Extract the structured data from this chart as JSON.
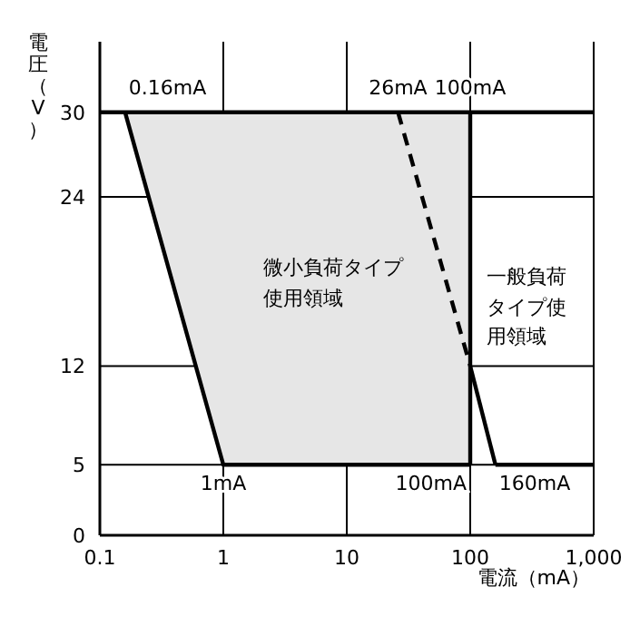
{
  "chart_data": {
    "type": "line",
    "xlabel": "電流（mA）",
    "ylabel": "電圧（V）",
    "log": "x",
    "grid": true,
    "marker": "none",
    "xlim": [
      0.1,
      1000
    ],
    "xticks": [
      0.1,
      1,
      10,
      100,
      {
        "value": 1000,
        "label": "1,000"
      }
    ],
    "ylim": [
      0,
      35
    ],
    "yticks": [
      0,
      5,
      12,
      24,
      30
    ],
    "series": [
      {
        "x": [
          0.16,
          1,
          100
        ],
        "values": [
          30,
          5,
          5
        ],
        "lower": [
          30,
          5,
          5
        ],
        "upper": [
          30,
          30,
          30
        ],
        "color": "#000000"
      },
      {
        "x": [
          0.1,
          1000
        ],
        "values": [
          30,
          30
        ],
        "color": "#000000"
      },
      {
        "x": [
          100,
          100
        ],
        "values": [
          5,
          30
        ],
        "color": "#000000"
      },
      {
        "x": [
          160,
          1000
        ],
        "values": [
          5,
          5
        ],
        "color": "#000000"
      },
      {
        "x": [
          26,
          100
        ],
        "values": [
          30,
          12
        ],
        "color": "#000000",
        "line_style": "dashed"
      },
      {
        "x": [
          100,
          160
        ],
        "values": [
          12,
          5
        ],
        "color": "#000000"
      }
    ],
    "annotations": [
      {
        "text": "0.16mA",
        "x": 0.16,
        "y": 30
      },
      {
        "text": "26mA",
        "x": 26,
        "y": 30
      },
      {
        "text": "100mA",
        "x": 100,
        "y": 30
      },
      {
        "text": "1mA",
        "x": 1,
        "y": 5
      },
      {
        "text": "100mA",
        "x": 100,
        "y": 5
      },
      {
        "text": "160mA",
        "x": 160,
        "y": 5
      },
      "微小負荷タイプ使用領域",
      "一般負荷タイプ使用領域"
    ]
  }
}
